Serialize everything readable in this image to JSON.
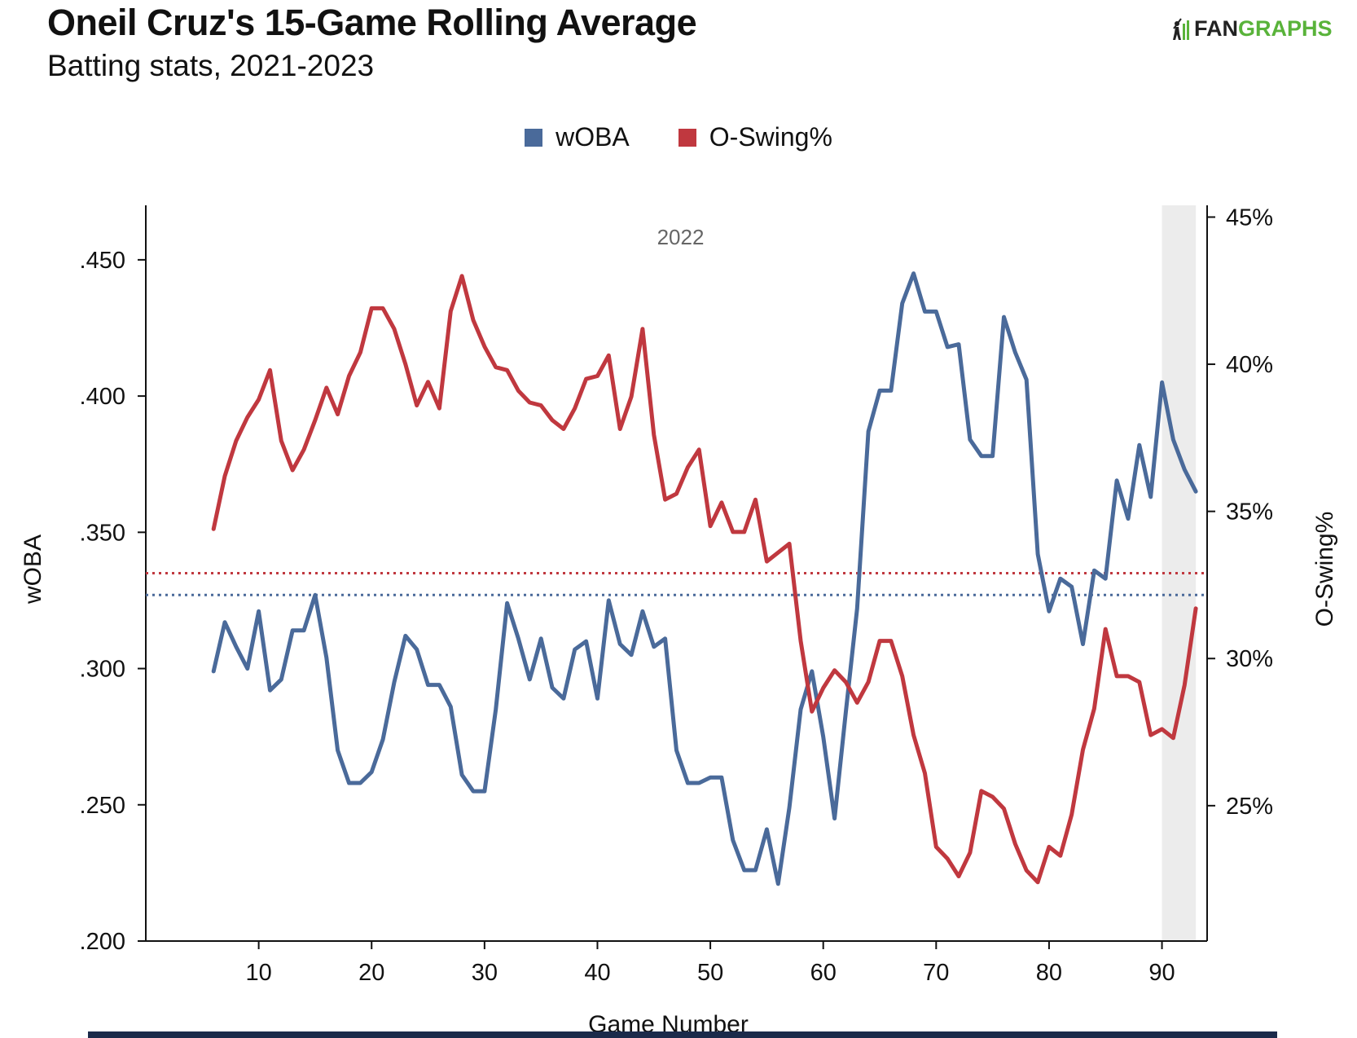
{
  "title": "Oneil Cruz's 15-Game Rolling Average",
  "subtitle": "Batting stats, 2021-2023",
  "logo": {
    "fan": "FAN",
    "graphs": "GRAPHS"
  },
  "colors": {
    "woba": "#4a6a9a",
    "oswing": "#c0383f",
    "shade": "#ececec",
    "axis": "#111111"
  },
  "chart_data": {
    "type": "line",
    "xlabel": "Game Number",
    "ylabel_left": "wOBA",
    "ylabel_right": "O-Swing%",
    "xlim": [
      0,
      94
    ],
    "ylim_left": [
      0.2,
      0.47
    ],
    "ylim_right": [
      20.4,
      45.4
    ],
    "x_ticks": [
      10,
      20,
      30,
      40,
      50,
      60,
      70,
      80,
      90
    ],
    "x_tick_labels": [
      "10",
      "20",
      "30",
      "40",
      "50",
      "60",
      "70",
      "80",
      "90"
    ],
    "y_left_ticks": [
      0.2,
      0.25,
      0.3,
      0.35,
      0.4,
      0.45
    ],
    "y_left_tick_labels": [
      ".200",
      ".250",
      ".300",
      ".350",
      ".400",
      ".450"
    ],
    "y_right_ticks": [
      25,
      30,
      35,
      40,
      45
    ],
    "y_right_tick_labels": [
      "25%",
      "30%",
      "35%",
      "40%",
      "45%"
    ],
    "season_label": "2022",
    "shaded_region": [
      90,
      93
    ],
    "reference_lines": [
      {
        "series": "O-Swing%",
        "value": 32.9,
        "axis": "right"
      },
      {
        "series": "wOBA",
        "value": 0.327,
        "axis": "left"
      }
    ],
    "x": [
      6,
      7,
      8,
      9,
      10,
      11,
      12,
      13,
      14,
      15,
      16,
      17,
      18,
      19,
      20,
      21,
      22,
      23,
      24,
      25,
      26,
      27,
      28,
      29,
      30,
      31,
      32,
      33,
      34,
      35,
      36,
      37,
      38,
      39,
      40,
      41,
      42,
      43,
      44,
      45,
      46,
      47,
      48,
      49,
      50,
      51,
      52,
      53,
      54,
      55,
      56,
      57,
      58,
      59,
      60,
      61,
      62,
      63,
      64,
      65,
      66,
      67,
      68,
      69,
      70,
      71,
      72,
      73,
      74,
      75,
      76,
      77,
      78,
      79,
      80,
      81,
      82,
      83,
      84,
      85,
      86,
      87,
      88,
      89,
      90,
      91,
      92,
      93
    ],
    "series": [
      {
        "name": "wOBA",
        "axis": "left",
        "values": [
          0.299,
          0.317,
          0.308,
          0.3,
          0.321,
          0.292,
          0.296,
          0.314,
          0.314,
          0.327,
          0.304,
          0.27,
          0.258,
          0.258,
          0.262,
          0.274,
          0.295,
          0.312,
          0.307,
          0.294,
          0.294,
          0.286,
          0.261,
          0.255,
          0.255,
          0.285,
          0.324,
          0.311,
          0.296,
          0.311,
          0.293,
          0.289,
          0.307,
          0.31,
          0.289,
          0.325,
          0.309,
          0.305,
          0.321,
          0.308,
          0.311,
          0.27,
          0.258,
          0.258,
          0.26,
          0.26,
          0.237,
          0.226,
          0.226,
          0.241,
          0.221,
          0.249,
          0.285,
          0.299,
          0.275,
          0.245,
          0.284,
          0.322,
          0.387,
          0.402,
          0.402,
          0.434,
          0.445,
          0.431,
          0.431,
          0.418,
          0.419,
          0.384,
          0.378,
          0.378,
          0.429,
          0.416,
          0.406,
          0.342,
          0.321,
          0.333,
          0.33,
          0.309,
          0.336,
          0.333,
          0.369,
          0.355,
          0.382,
          0.363,
          0.405,
          0.384,
          0.373,
          0.365
        ]
      },
      {
        "name": "O-Swing%",
        "axis": "right",
        "values": [
          34.4,
          36.2,
          37.4,
          38.2,
          38.8,
          39.8,
          37.4,
          36.4,
          37.1,
          38.1,
          39.2,
          38.3,
          39.6,
          40.4,
          41.9,
          41.9,
          41.2,
          40.0,
          38.6,
          39.4,
          38.5,
          41.8,
          43.0,
          41.5,
          40.6,
          39.9,
          39.8,
          39.1,
          38.7,
          38.6,
          38.1,
          37.8,
          38.5,
          39.5,
          39.6,
          40.3,
          37.8,
          38.9,
          41.2,
          37.6,
          35.4,
          35.6,
          36.5,
          37.1,
          34.5,
          35.3,
          34.3,
          34.3,
          35.4,
          33.3,
          33.6,
          33.9,
          30.6,
          28.2,
          29.0,
          29.6,
          29.2,
          28.5,
          29.2,
          30.6,
          30.6,
          29.4,
          27.4,
          26.1,
          23.6,
          23.2,
          22.6,
          23.4,
          25.5,
          25.3,
          24.9,
          23.7,
          22.8,
          22.4,
          23.6,
          23.3,
          24.7,
          26.9,
          28.3,
          31.0,
          29.4,
          29.4,
          29.2,
          27.4,
          27.6,
          27.3,
          29.1,
          31.7
        ]
      }
    ]
  }
}
